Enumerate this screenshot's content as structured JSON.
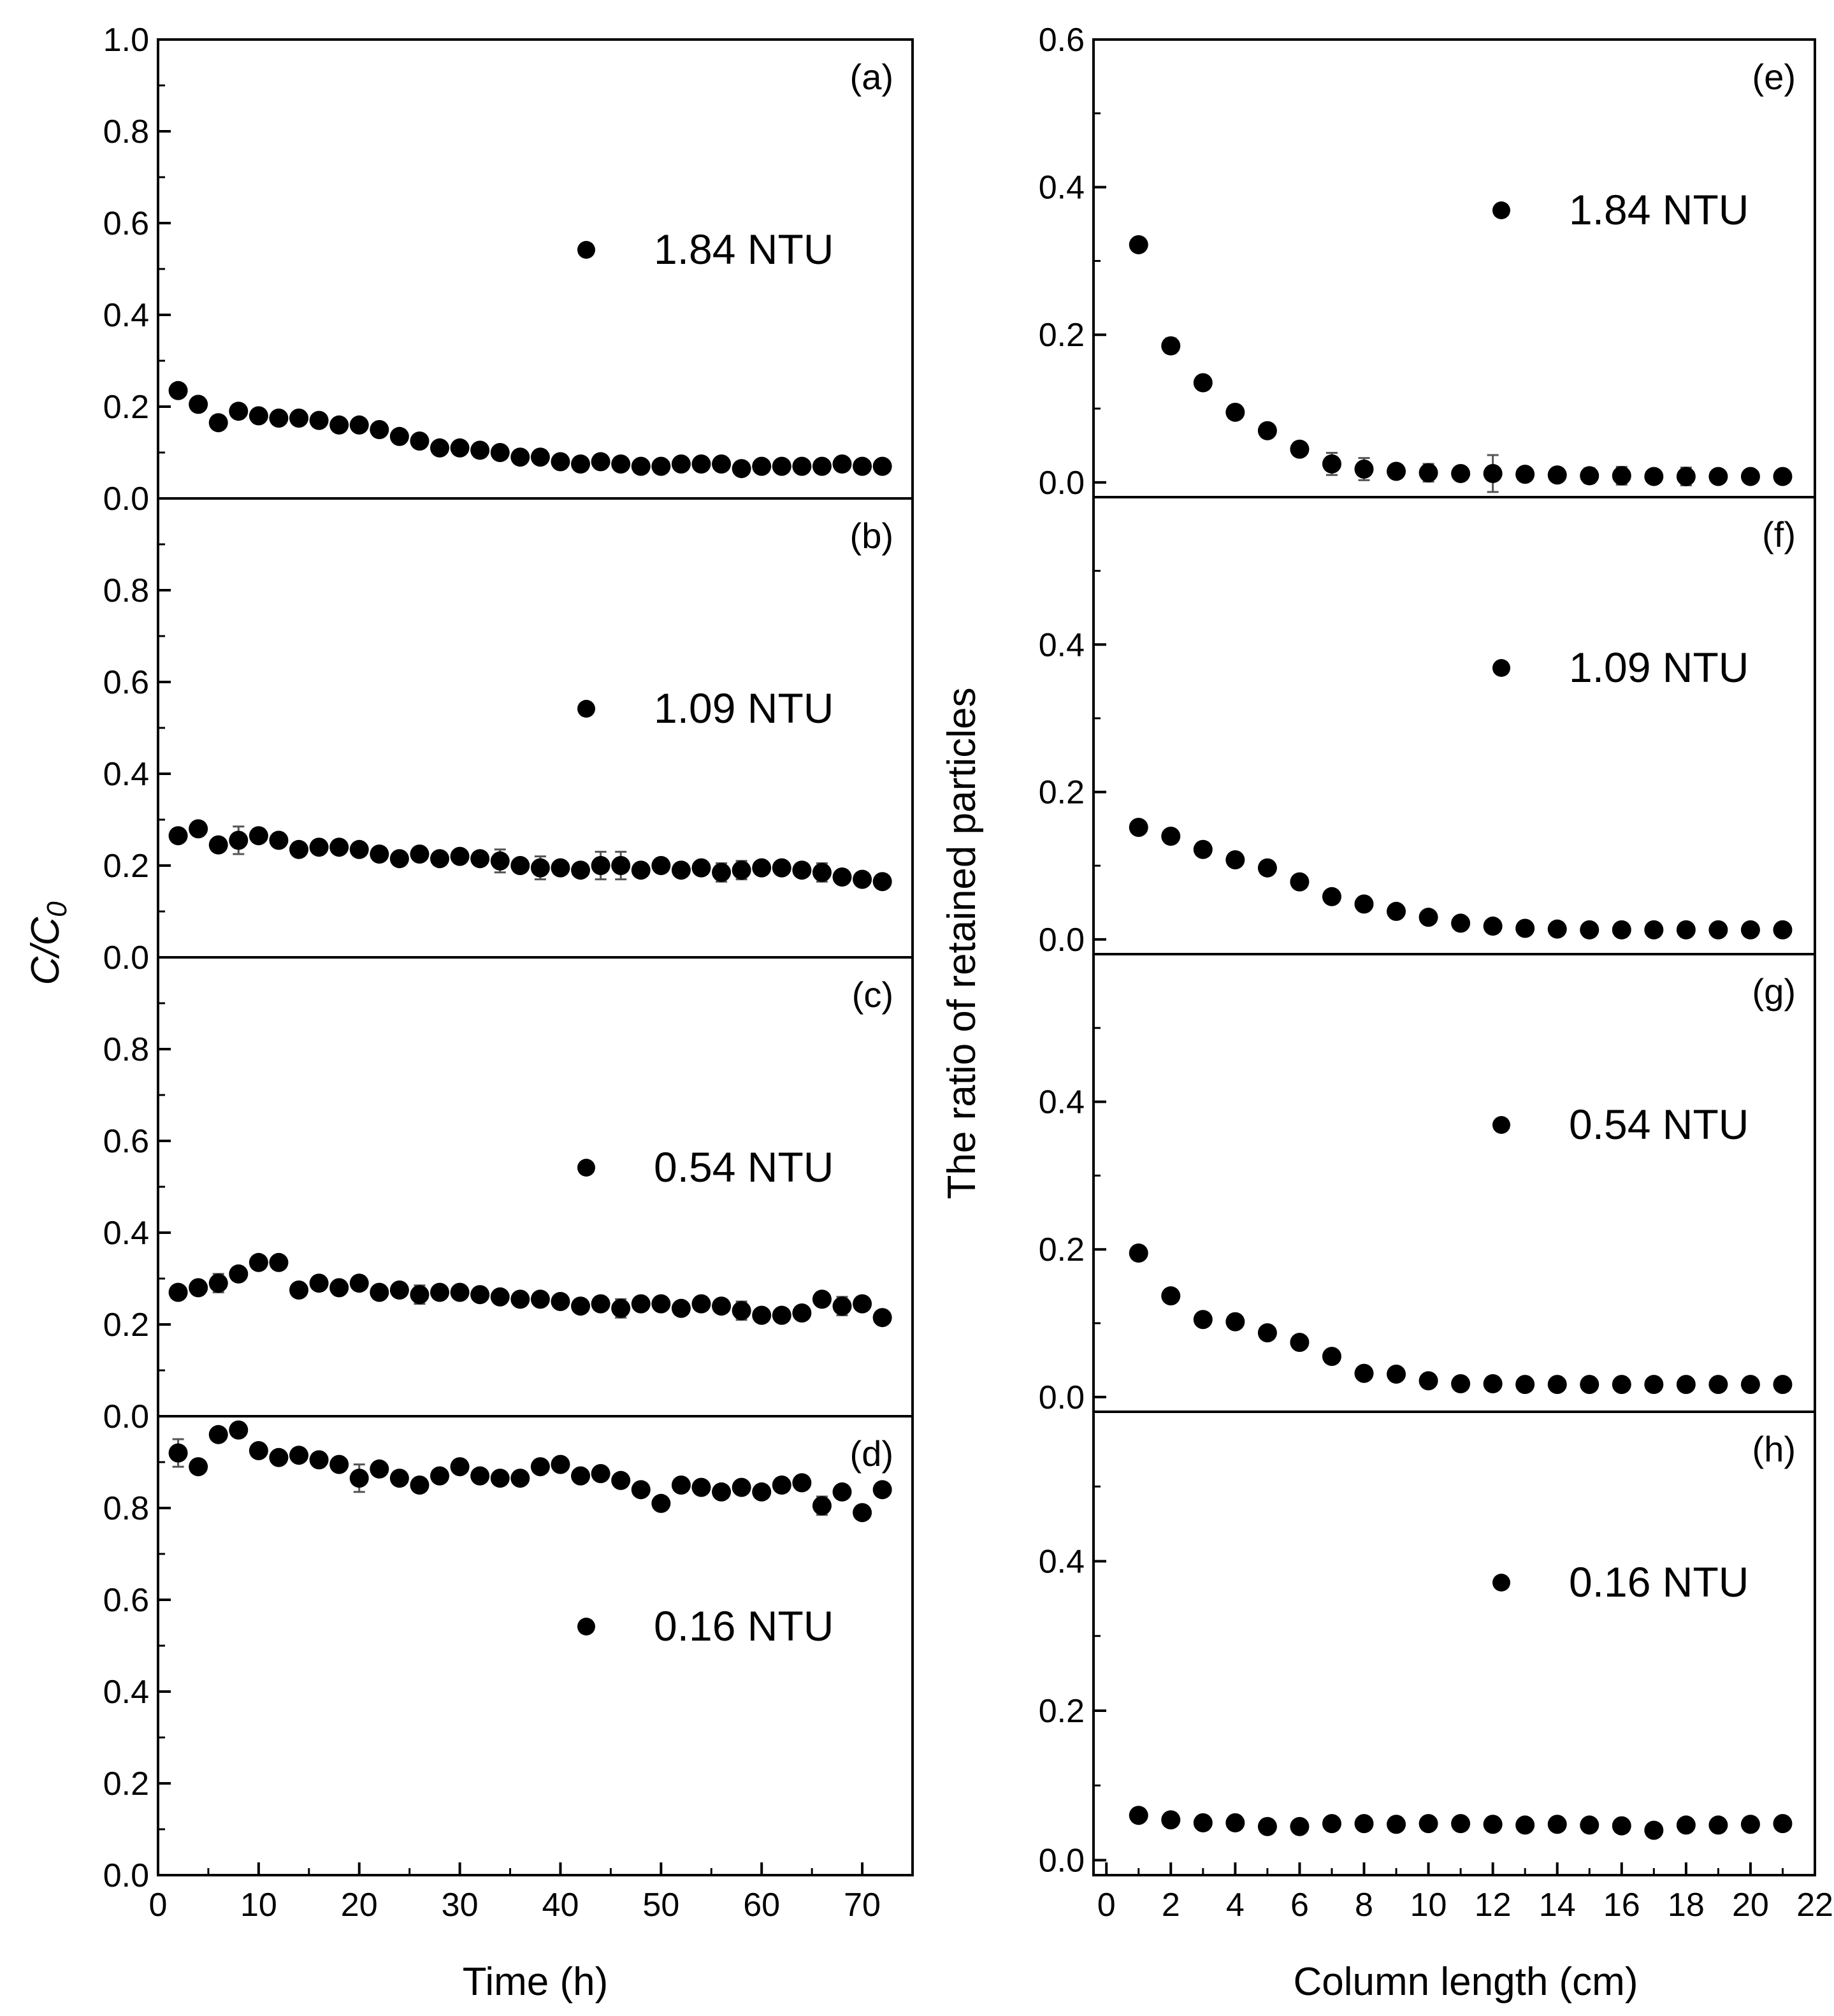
{
  "chart_data": [
    {
      "type": "scatter",
      "panel": "(a)",
      "legend": "1.84 NTU",
      "xlabel": "Time (h)",
      "ylabel": "C/C0",
      "xlim": [
        0,
        75
      ],
      "ylim": [
        0.0,
        1.0
      ],
      "x": [
        2,
        4,
        6,
        8,
        10,
        12,
        14,
        16,
        18,
        20,
        22,
        24,
        26,
        28,
        30,
        32,
        34,
        36,
        38,
        40,
        42,
        44,
        46,
        48,
        50,
        52,
        54,
        56,
        58,
        60,
        62,
        64,
        66,
        68,
        70,
        72
      ],
      "y": [
        0.235,
        0.205,
        0.165,
        0.19,
        0.18,
        0.175,
        0.175,
        0.17,
        0.16,
        0.16,
        0.15,
        0.135,
        0.125,
        0.11,
        0.11,
        0.105,
        0.1,
        0.09,
        0.09,
        0.08,
        0.075,
        0.08,
        0.075,
        0.07,
        0.07,
        0.075,
        0.075,
        0.075,
        0.065,
        0.07,
        0.07,
        0.07,
        0.07,
        0.075,
        0.07,
        0.07
      ]
    },
    {
      "type": "scatter",
      "panel": "(b)",
      "legend": "1.09 NTU",
      "xlim": [
        0,
        75
      ],
      "ylim": [
        0.0,
        1.0
      ],
      "x": [
        2,
        4,
        6,
        8,
        10,
        12,
        14,
        16,
        18,
        20,
        22,
        24,
        26,
        28,
        30,
        32,
        34,
        36,
        38,
        40,
        42,
        44,
        46,
        48,
        50,
        52,
        54,
        56,
        58,
        60,
        62,
        64,
        66,
        68,
        70,
        72
      ],
      "y": [
        0.265,
        0.28,
        0.245,
        0.255,
        0.265,
        0.255,
        0.235,
        0.24,
        0.24,
        0.235,
        0.225,
        0.215,
        0.225,
        0.215,
        0.22,
        0.215,
        0.21,
        0.2,
        0.195,
        0.195,
        0.19,
        0.2,
        0.2,
        0.19,
        0.2,
        0.19,
        0.195,
        0.185,
        0.19,
        0.195,
        0.195,
        0.19,
        0.185,
        0.175,
        0.17,
        0.165
      ],
      "err": [
        0.0,
        0.0,
        0.0,
        0.03,
        0.0,
        0.0,
        0.0,
        0.0,
        0.0,
        0.0,
        0.0,
        0.0,
        0.0,
        0.0,
        0.0,
        0.0,
        0.025,
        0.0,
        0.025,
        0.0,
        0.0,
        0.03,
        0.03,
        0.0,
        0.0,
        0.0,
        0.0,
        0.02,
        0.02,
        0.0,
        0.0,
        0.0,
        0.02,
        0.0,
        0.0,
        0.0
      ]
    },
    {
      "type": "scatter",
      "panel": "(c)",
      "legend": "0.54 NTU",
      "xlim": [
        0,
        75
      ],
      "ylim": [
        0.0,
        1.0
      ],
      "x": [
        2,
        4,
        6,
        8,
        10,
        12,
        14,
        16,
        18,
        20,
        22,
        24,
        26,
        28,
        30,
        32,
        34,
        36,
        38,
        40,
        42,
        44,
        46,
        48,
        50,
        52,
        54,
        56,
        58,
        60,
        62,
        64,
        66,
        68,
        70,
        72
      ],
      "y": [
        0.27,
        0.28,
        0.29,
        0.31,
        0.335,
        0.335,
        0.275,
        0.29,
        0.28,
        0.29,
        0.27,
        0.275,
        0.265,
        0.27,
        0.27,
        0.265,
        0.26,
        0.255,
        0.255,
        0.25,
        0.24,
        0.245,
        0.235,
        0.245,
        0.245,
        0.235,
        0.245,
        0.24,
        0.23,
        0.22,
        0.22,
        0.225,
        0.255,
        0.24,
        0.245,
        0.215
      ],
      "err": [
        0.0,
        0.0,
        0.02,
        0.0,
        0.0,
        0.0,
        0.0,
        0.0,
        0.0,
        0.0,
        0.0,
        0.0,
        0.02,
        0.0,
        0.0,
        0.0,
        0.0,
        0.0,
        0.0,
        0.0,
        0.0,
        0.0,
        0.02,
        0.0,
        0.0,
        0.0,
        0.0,
        0.0,
        0.02,
        0.0,
        0.0,
        0.0,
        0.0,
        0.02,
        0.0,
        0.0
      ]
    },
    {
      "type": "scatter",
      "panel": "(d)",
      "legend": "0.16 NTU",
      "xlim": [
        0,
        75
      ],
      "ylim": [
        0.0,
        1.0
      ],
      "x": [
        2,
        4,
        6,
        8,
        10,
        12,
        14,
        16,
        18,
        20,
        22,
        24,
        26,
        28,
        30,
        32,
        34,
        36,
        38,
        40,
        42,
        44,
        46,
        48,
        50,
        52,
        54,
        56,
        58,
        60,
        62,
        64,
        66,
        68,
        70,
        72
      ],
      "y": [
        0.92,
        0.89,
        0.96,
        0.97,
        0.925,
        0.91,
        0.915,
        0.905,
        0.895,
        0.865,
        0.885,
        0.865,
        0.85,
        0.87,
        0.89,
        0.87,
        0.865,
        0.865,
        0.89,
        0.895,
        0.87,
        0.875,
        0.86,
        0.84,
        0.81,
        0.85,
        0.845,
        0.835,
        0.845,
        0.835,
        0.85,
        0.855,
        0.805,
        0.835,
        0.79,
        0.84
      ],
      "err": [
        0.03,
        0.0,
        0.0,
        0.0,
        0.0,
        0.0,
        0.0,
        0.0,
        0.0,
        0.03,
        0.0,
        0.0,
        0.0,
        0.0,
        0.0,
        0.0,
        0.0,
        0.0,
        0.0,
        0.0,
        0.0,
        0.0,
        0.0,
        0.0,
        0.0,
        0.0,
        0.0,
        0.0,
        0.0,
        0.0,
        0.0,
        0.0,
        0.02,
        0.0,
        0.0,
        0.0
      ]
    },
    {
      "type": "scatter",
      "panel": "(e)",
      "legend": "1.84 NTU",
      "xlabel": "Column length (cm)",
      "ylabel": "The ratio of retained particles",
      "xlim": [
        -0.4,
        22
      ],
      "ylim": [
        -0.02,
        0.6
      ],
      "x": [
        1,
        2,
        3,
        4,
        5,
        6,
        7,
        8,
        9,
        10,
        11,
        12,
        13,
        14,
        15,
        16,
        17,
        18,
        19,
        20,
        21
      ],
      "y": [
        0.322,
        0.185,
        0.135,
        0.095,
        0.07,
        0.045,
        0.025,
        0.018,
        0.015,
        0.013,
        0.012,
        0.012,
        0.011,
        0.01,
        0.009,
        0.009,
        0.008,
        0.008,
        0.008,
        0.008,
        0.008
      ],
      "err": [
        0.0,
        0.01,
        0.008,
        0.007,
        0.0,
        0.008,
        0.015,
        0.015,
        0.0,
        0.012,
        0.0,
        0.025,
        0.0,
        0.0,
        0.01,
        0.012,
        0.0,
        0.012,
        0.0,
        0.0,
        0.0
      ]
    },
    {
      "type": "scatter",
      "panel": "(f)",
      "legend": "1.09 NTU",
      "xlim": [
        -0.4,
        22
      ],
      "ylim": [
        -0.02,
        0.6
      ],
      "x": [
        1,
        2,
        3,
        4,
        5,
        6,
        7,
        8,
        9,
        10,
        11,
        12,
        13,
        14,
        15,
        16,
        17,
        18,
        19,
        20,
        21
      ],
      "y": [
        0.152,
        0.14,
        0.122,
        0.108,
        0.097,
        0.078,
        0.058,
        0.048,
        0.038,
        0.03,
        0.022,
        0.018,
        0.015,
        0.014,
        0.013,
        0.013,
        0.013,
        0.013,
        0.013,
        0.013,
        0.013
      ]
    },
    {
      "type": "scatter",
      "panel": "(g)",
      "legend": "0.54 NTU",
      "xlim": [
        -0.4,
        22
      ],
      "ylim": [
        -0.02,
        0.6
      ],
      "x": [
        1,
        2,
        3,
        4,
        5,
        6,
        7,
        8,
        9,
        10,
        11,
        12,
        13,
        14,
        15,
        16,
        17,
        18,
        19,
        20,
        21
      ],
      "y": [
        0.195,
        0.137,
        0.105,
        0.102,
        0.087,
        0.074,
        0.055,
        0.032,
        0.031,
        0.022,
        0.018,
        0.018,
        0.017,
        0.017,
        0.017,
        0.017,
        0.017,
        0.017,
        0.017,
        0.017,
        0.017
      ]
    },
    {
      "type": "scatter",
      "panel": "(h)",
      "legend": "0.16 NTU",
      "xlim": [
        -0.4,
        22
      ],
      "ylim": [
        -0.02,
        0.6
      ],
      "x": [
        1,
        2,
        3,
        4,
        5,
        6,
        7,
        8,
        9,
        10,
        11,
        12,
        13,
        14,
        15,
        16,
        17,
        18,
        19,
        20,
        21
      ],
      "y": [
        0.06,
        0.054,
        0.05,
        0.05,
        0.045,
        0.045,
        0.049,
        0.049,
        0.048,
        0.049,
        0.049,
        0.048,
        0.047,
        0.048,
        0.047,
        0.046,
        0.04,
        0.047,
        0.047,
        0.048,
        0.049
      ]
    }
  ],
  "axes": {
    "left": {
      "y_ticks": [
        "0.0",
        "0.2",
        "0.4",
        "0.6",
        "0.8",
        "1.0"
      ],
      "x_ticks": [
        "0",
        "10",
        "20",
        "30",
        "40",
        "50",
        "60",
        "70"
      ],
      "xlabel": "Time (h)",
      "ylabel_main": "C/C",
      "ylabel_sub": "0"
    },
    "right": {
      "y_ticks": [
        "0.0",
        "0.2",
        "0.4",
        "0.6"
      ],
      "x_ticks": [
        "0",
        "2",
        "4",
        "6",
        "8",
        "10",
        "12",
        "14",
        "16",
        "18",
        "20",
        "22"
      ],
      "xlabel": "Column length (cm)",
      "ylabel": "The ratio of retained particles"
    }
  }
}
